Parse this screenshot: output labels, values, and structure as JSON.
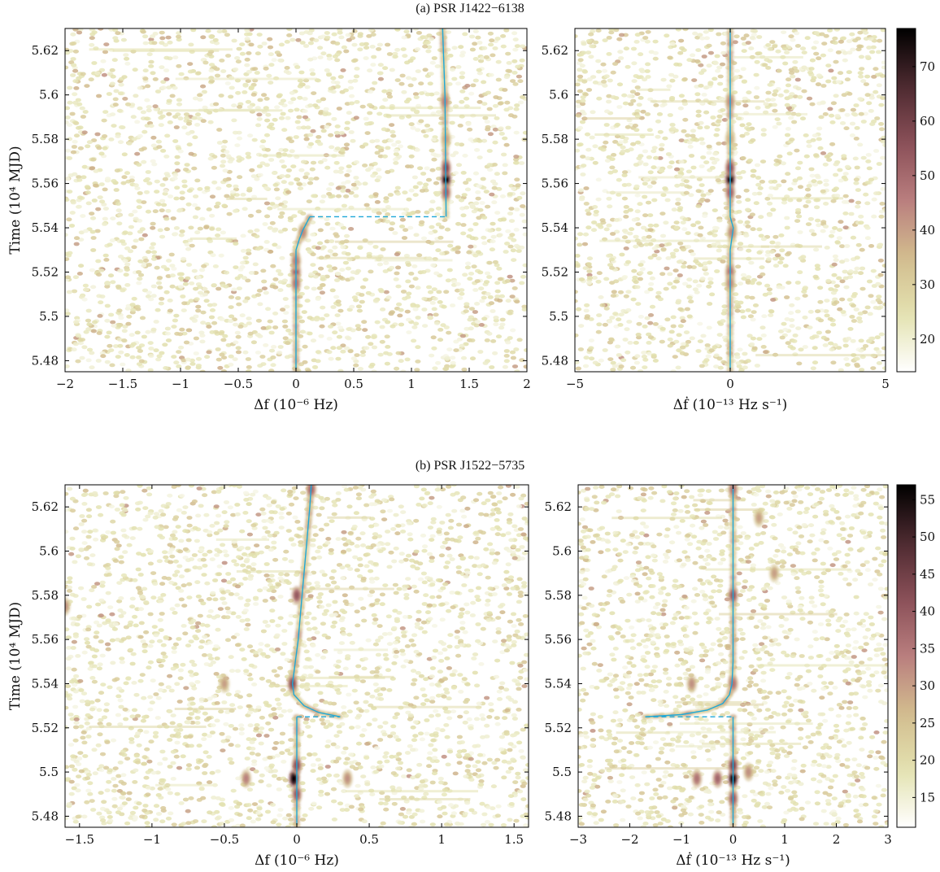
{
  "chart_data": [
    {
      "type": "heatmap",
      "panel": "a",
      "title": "(a) PSR J1422−6138",
      "ylabel": "Time (10⁴ MJD)",
      "ylim": [
        5.475,
        5.63
      ],
      "yticks": [
        5.48,
        5.5,
        5.52,
        5.54,
        5.56,
        5.58,
        5.6,
        5.62
      ],
      "ytick_labels": [
        "5.48",
        "5.5",
        "5.52",
        "5.54",
        "5.56",
        "5.58",
        "5.6",
        "5.62"
      ],
      "colorbar": {
        "range": [
          14,
          77
        ],
        "ticks": [
          20,
          30,
          40,
          50,
          60,
          70
        ],
        "tick_labels": [
          "20",
          "30",
          "40",
          "50",
          "60",
          "70"
        ]
      },
      "subplots": [
        {
          "xlabel": "Δf (10⁻⁶ Hz)",
          "xlim": [
            -2,
            2
          ],
          "xticks": [
            -2,
            -1.5,
            -1,
            -0.5,
            0,
            0.5,
            1,
            1.5,
            2
          ],
          "xtick_labels": [
            "−2",
            "−1.5",
            "−1",
            "−0.5",
            "0",
            "0.5",
            "1",
            "1.5",
            "2"
          ],
          "track_solid": [
            [
              [
                0,
                5.476
              ],
              [
                0,
                5.53
              ]
            ],
            [
              [
                0.0,
                5.53
              ],
              [
                0.03,
                5.535
              ],
              [
                0.06,
                5.539
              ],
              [
                0.09,
                5.542
              ],
              [
                0.12,
                5.545
              ]
            ],
            [
              [
                1.3,
                5.545
              ],
              [
                1.29,
                5.6
              ],
              [
                1.27,
                5.63
              ]
            ]
          ],
          "track_dashed": [
            [
              [
                0.12,
                5.545
              ],
              [
                1.3,
                5.545
              ]
            ]
          ],
          "hot_spots": [
            {
              "x": 0.0,
              "y": 5.52,
              "v": 52
            },
            {
              "x": 0.0,
              "y": 5.515,
              "v": 48
            },
            {
              "x": 0.0,
              "y": 5.525,
              "v": 46
            },
            {
              "x": 0.06,
              "y": 5.538,
              "v": 44
            },
            {
              "x": 1.3,
              "y": 5.562,
              "v": 77
            },
            {
              "x": 1.3,
              "y": 5.567,
              "v": 58
            },
            {
              "x": 1.3,
              "y": 5.556,
              "v": 52
            },
            {
              "x": 1.29,
              "y": 5.597,
              "v": 46
            },
            {
              "x": 1.3,
              "y": 5.58,
              "v": 40
            }
          ]
        },
        {
          "xlabel": "Δḟ (10⁻¹³ Hz s⁻¹)",
          "xlim": [
            -5,
            5
          ],
          "xticks": [
            -5,
            0,
            5
          ],
          "xtick_labels": [
            "−5",
            "0",
            "5"
          ],
          "track_solid": [
            [
              [
                0,
                5.476
              ],
              [
                0,
                5.53
              ]
            ],
            [
              [
                0,
                5.53
              ],
              [
                0.1,
                5.54
              ],
              [
                0,
                5.545
              ]
            ],
            [
              [
                0,
                5.545
              ],
              [
                0,
                5.63
              ]
            ]
          ],
          "track_dashed": [],
          "hot_spots": [
            {
              "x": 0.0,
              "y": 5.562,
              "v": 77
            },
            {
              "x": 0.0,
              "y": 5.567,
              "v": 56
            },
            {
              "x": 0.0,
              "y": 5.556,
              "v": 52
            },
            {
              "x": 0.0,
              "y": 5.52,
              "v": 48
            },
            {
              "x": 0.0,
              "y": 5.515,
              "v": 44
            },
            {
              "x": 0.05,
              "y": 5.538,
              "v": 44
            },
            {
              "x": 0.0,
              "y": 5.597,
              "v": 44
            },
            {
              "x": 0.0,
              "y": 5.58,
              "v": 38
            }
          ]
        }
      ]
    },
    {
      "type": "heatmap",
      "panel": "b",
      "title": "(b) PSR J1522−5735",
      "ylabel": "Time (10⁴ MJD)",
      "ylim": [
        5.475,
        5.63
      ],
      "yticks": [
        5.48,
        5.5,
        5.52,
        5.54,
        5.56,
        5.58,
        5.6,
        5.62
      ],
      "ytick_labels": [
        "5.48",
        "5.5",
        "5.52",
        "5.54",
        "5.56",
        "5.58",
        "5.6",
        "5.62"
      ],
      "colorbar": {
        "range": [
          11,
          57
        ],
        "ticks": [
          15,
          20,
          25,
          30,
          35,
          40,
          45,
          50,
          55
        ],
        "tick_labels": [
          "15",
          "20",
          "25",
          "30",
          "35",
          "40",
          "45",
          "50",
          "55"
        ]
      },
      "subplots": [
        {
          "xlabel": "Δf (10⁻⁶ Hz)",
          "xlim": [
            -1.6,
            1.6
          ],
          "xticks": [
            -1.5,
            -1,
            -0.5,
            0,
            0.5,
            1,
            1.5
          ],
          "xtick_labels": [
            "−1.5",
            "−1",
            "−0.5",
            "0",
            "0.5",
            "1",
            "1.5"
          ],
          "track_solid": [
            [
              [
                0,
                5.476
              ],
              [
                0,
                5.525
              ]
            ],
            [
              [
                0.3,
                5.525
              ],
              [
                0.15,
                5.527
              ],
              [
                0.05,
                5.53
              ],
              [
                -0.02,
                5.535
              ],
              [
                -0.03,
                5.54
              ],
              [
                -0.01,
                5.55
              ],
              [
                0.01,
                5.56
              ],
              [
                0.03,
                5.575
              ],
              [
                0.05,
                5.59
              ],
              [
                0.07,
                5.605
              ],
              [
                0.09,
                5.62
              ],
              [
                0.1,
                5.63
              ]
            ]
          ],
          "track_dashed": [
            [
              [
                0,
                5.525
              ],
              [
                0.3,
                5.525
              ]
            ]
          ],
          "hot_spots": [
            {
              "x": -0.02,
              "y": 5.497,
              "v": 57
            },
            {
              "x": 0.0,
              "y": 5.503,
              "v": 42
            },
            {
              "x": 0.0,
              "y": 5.49,
              "v": 40
            },
            {
              "x": -0.03,
              "y": 5.54,
              "v": 42
            },
            {
              "x": 0.0,
              "y": 5.58,
              "v": 40
            },
            {
              "x": 0.1,
              "y": 5.628,
              "v": 38
            },
            {
              "x": -0.35,
              "y": 5.497,
              "v": 34
            },
            {
              "x": 0.35,
              "y": 5.497,
              "v": 32
            },
            {
              "x": -1.6,
              "y": 5.575,
              "v": 32
            },
            {
              "x": -0.5,
              "y": 5.54,
              "v": 30
            }
          ]
        },
        {
          "xlabel": "Δḟ (10⁻¹³ Hz s⁻¹)",
          "xlim": [
            -3,
            3
          ],
          "xticks": [
            -3,
            -2,
            -1,
            0,
            1,
            2,
            3
          ],
          "xtick_labels": [
            "−3",
            "−2",
            "−1",
            "0",
            "1",
            "2",
            "3"
          ],
          "track_solid": [
            [
              [
                0,
                5.476
              ],
              [
                0,
                5.525
              ]
            ],
            [
              [
                -1.7,
                5.525
              ],
              [
                -1.0,
                5.526
              ],
              [
                -0.5,
                5.528
              ],
              [
                -0.2,
                5.531
              ],
              [
                -0.07,
                5.535
              ],
              [
                -0.02,
                5.54
              ],
              [
                0,
                5.55
              ],
              [
                0,
                5.63
              ]
            ]
          ],
          "track_dashed": [
            [
              [
                -1.7,
                5.525
              ],
              [
                0,
                5.525
              ]
            ]
          ],
          "hot_spots": [
            {
              "x": 0.0,
              "y": 5.497,
              "v": 57
            },
            {
              "x": 0.0,
              "y": 5.503,
              "v": 44
            },
            {
              "x": 0.0,
              "y": 5.488,
              "v": 40
            },
            {
              "x": -0.3,
              "y": 5.497,
              "v": 38
            },
            {
              "x": -0.7,
              "y": 5.497,
              "v": 36
            },
            {
              "x": 0.3,
              "y": 5.5,
              "v": 32
            },
            {
              "x": 0.0,
              "y": 5.58,
              "v": 40
            },
            {
              "x": 0.0,
              "y": 5.54,
              "v": 36
            },
            {
              "x": 0.0,
              "y": 5.628,
              "v": 36
            },
            {
              "x": -0.8,
              "y": 5.54,
              "v": 32
            },
            {
              "x": 0.8,
              "y": 5.59,
              "v": 30
            },
            {
              "x": 0.5,
              "y": 5.615,
              "v": 30
            }
          ]
        }
      ]
    }
  ],
  "colormap": {
    "stops": [
      "#ffffff",
      "#e3e2b0",
      "#d2bc8e",
      "#b97e7e",
      "#8a4f58",
      "#4d2a30",
      "#000000"
    ],
    "track": "#1ea8d8"
  }
}
